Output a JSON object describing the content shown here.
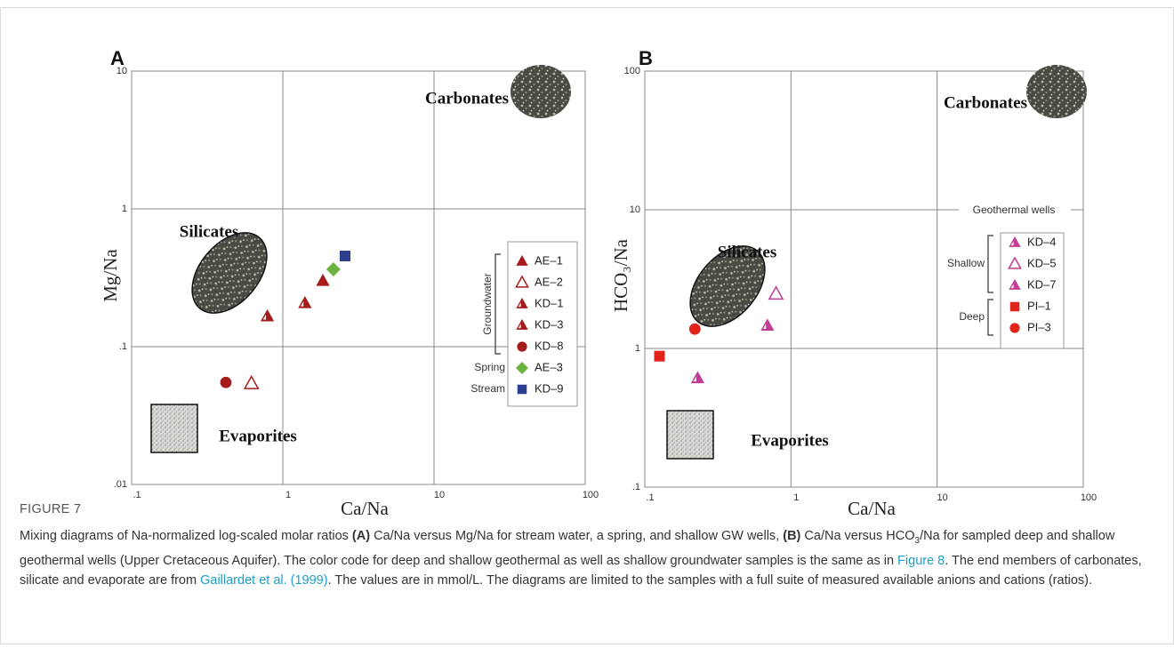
{
  "figure": {
    "label": "FIGURE 7",
    "caption": [
      {
        "text": "Mixing diagrams of Na-normalized log-scaled molar ratios ",
        "style": "plain"
      },
      {
        "text": "(A)",
        "style": "bold"
      },
      {
        "text": " Ca/Na versus Mg/Na for stream water, a spring, and shallow GW wells, ",
        "style": "plain"
      },
      {
        "text": "(B)",
        "style": "bold"
      },
      {
        "text": " Ca/Na versus HCO",
        "style": "plain"
      },
      {
        "text": "3",
        "style": "sub"
      },
      {
        "text": "/Na for sampled deep and shallow geothermal wells (Upper Cretaceous Aquifer). The color code for deep and shallow geothermal as well as shallow groundwater samples is the same as in ",
        "style": "plain"
      },
      {
        "text": "Figure 8",
        "style": "link"
      },
      {
        "text": ". The end members of carbonates, silicate and evaporate are from ",
        "style": "plain"
      },
      {
        "text": "Gaillardet et al. (1999)",
        "style": "link"
      },
      {
        "text": ". The values are in mmol/L. The diagrams are limited to the samples with a full suite of measured available anions and cations (ratios).",
        "style": "plain"
      }
    ]
  },
  "chart_data": [
    {
      "type": "scatter",
      "panel": "A",
      "xlabel": "Ca/Na",
      "ylabel": "Mg/Na",
      "log_x": true,
      "log_y": true,
      "grid": true,
      "xlim": [
        0.1,
        100
      ],
      "ylim": [
        0.01,
        10
      ],
      "xticks": [
        {
          "value": 0.1,
          "label": ".1"
        },
        1,
        10,
        100
      ],
      "yticks": [
        {
          "value": 0.01,
          "label": ".01"
        },
        {
          "value": 0.1,
          "label": ".1"
        },
        1,
        10
      ],
      "annotations": [
        "Carbonates",
        "Silicates",
        "Evaporites"
      ],
      "groups": [
        {
          "name": "Groundwater",
          "series": [
            {
              "name": "AE–1",
              "color": "#a51c1c",
              "marker": "triangle",
              "x": [
                1.84
              ],
              "values": [
                0.3
              ]
            },
            {
              "name": "AE–2",
              "color": "#a51c1c",
              "marker": "triangle-open",
              "x": [
                0.62
              ],
              "values": [
                0.054
              ]
            },
            {
              "name": "KD–1",
              "color": "#a51c1c",
              "marker": "triangle-half",
              "x": [
                0.79
              ],
              "values": [
                0.166
              ]
            },
            {
              "name": "KD–3",
              "color": "#a51c1c",
              "marker": "triangle-half",
              "x": [
                1.4
              ],
              "values": [
                0.207
              ]
            },
            {
              "name": "KD–8",
              "color": "#a51c1c",
              "marker": "circle",
              "x": [
                0.42
              ],
              "values": [
                0.055
              ]
            }
          ]
        },
        {
          "name": "Spring",
          "series": [
            {
              "name": "AE–3",
              "color": "#6cb33f",
              "marker": "diamond",
              "x": [
                2.16
              ],
              "values": [
                0.364
              ]
            }
          ]
        },
        {
          "name": "Stream",
          "series": [
            {
              "name": "KD–9",
              "color": "#2e3e8f",
              "marker": "square",
              "x": [
                2.58
              ],
              "values": [
                0.455
              ]
            }
          ]
        }
      ]
    },
    {
      "type": "scatter",
      "panel": "B",
      "xlabel": "Ca/Na",
      "ylabel": "HCO₃/Na",
      "log_x": true,
      "log_y": true,
      "grid": true,
      "xlim": [
        0.1,
        100
      ],
      "ylim": [
        0.1,
        100
      ],
      "xticks": [
        {
          "value": 0.1,
          "label": ".1"
        },
        1,
        10,
        100
      ],
      "yticks": [
        {
          "value": 0.1,
          "label": ".1"
        },
        1,
        10,
        100
      ],
      "annotations": [
        "Carbonates",
        "Silicates",
        "Evaporites"
      ],
      "legend_title": "Geothermal wells",
      "groups": [
        {
          "name": "Shallow",
          "series": [
            {
              "name": "KD–4",
              "color": "#c23a96",
              "marker": "triangle-half",
              "x": [
                0.69
              ],
              "values": [
                1.46
              ]
            },
            {
              "name": "KD–5",
              "color": "#c23a96",
              "marker": "triangle-open",
              "x": [
                0.79
              ],
              "values": [
                2.47
              ]
            },
            {
              "name": "KD–7",
              "color": "#c23a96",
              "marker": "triangle-half",
              "x": [
                0.23
              ],
              "values": [
                0.61
              ]
            }
          ]
        },
        {
          "name": "Deep",
          "series": [
            {
              "name": "PI–1",
              "color": "#e2231a",
              "marker": "square",
              "x": [
                0.126
              ],
              "values": [
                0.88
              ]
            },
            {
              "name": "PI–3",
              "color": "#e2231a",
              "marker": "circle",
              "x": [
                0.22
              ],
              "values": [
                1.38
              ]
            }
          ]
        }
      ]
    }
  ]
}
